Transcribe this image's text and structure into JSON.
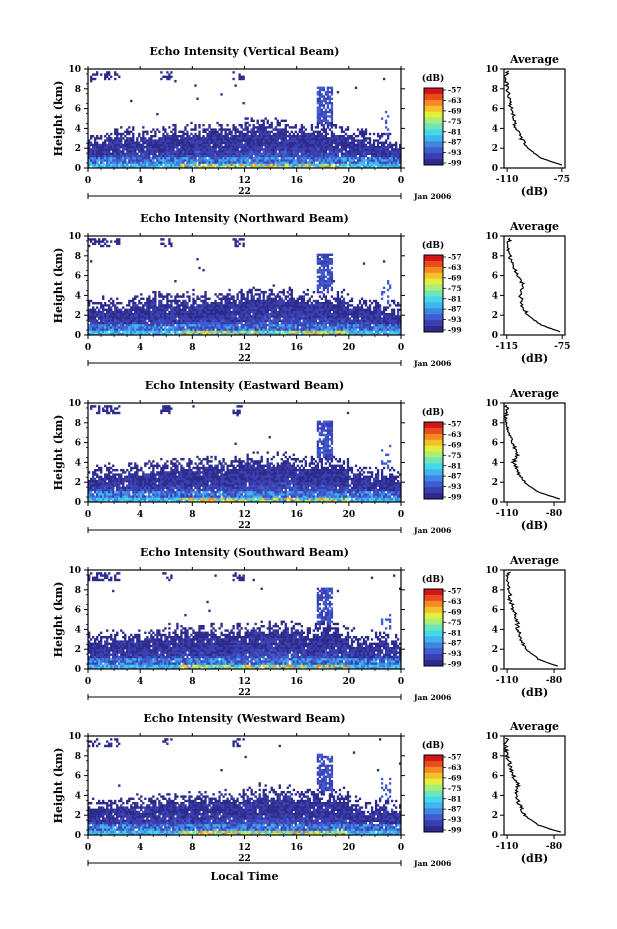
{
  "figure": {
    "colorbar_unit": "(dB)",
    "colorbar_ticks": [
      "-57",
      "-63",
      "-69",
      "-75",
      "-81",
      "-87",
      "-93",
      "-99"
    ],
    "colormap": [
      "#2c2a8c",
      "#3a3fb0",
      "#3f5cd0",
      "#3f86e3",
      "#3fb4ef",
      "#45d8e8",
      "#6ee6b8",
      "#a8ee78",
      "#e2ef3c",
      "#f5c02c",
      "#f58a22",
      "#ea4a1c",
      "#d0161a"
    ],
    "x_tick_labels": [
      "0",
      "4",
      "8",
      "12",
      "16",
      "20",
      "0"
    ],
    "date_day": "22",
    "date_month": "Jan 2006",
    "y_label": "Height (km)",
    "y_tick_labels": [
      "0",
      "2",
      "4",
      "6",
      "8",
      "10"
    ],
    "x_label": "Local Time",
    "avg_title": "Average",
    "avg_xlabel": "(dB)"
  },
  "chart_data": [
    {
      "type": "heatmap",
      "title": "Echo Intensity (Vertical Beam)",
      "ylabel": "Height (km)",
      "xlabel": "",
      "xlim": [
        0,
        24
      ],
      "ylim": [
        0,
        10
      ],
      "profile": {
        "title": "Average",
        "xlabel": "(dB)",
        "xticks": [
          "-110",
          "-75"
        ],
        "xlim": [
          -112,
          -73
        ],
        "height_km": [
          0.3,
          1,
          2,
          3,
          4,
          5,
          6,
          7,
          8,
          9,
          9.8
        ],
        "db": [
          -75,
          -88,
          -97,
          -101,
          -104,
          -106,
          -107,
          -109,
          -110,
          -111,
          -110
        ]
      }
    },
    {
      "type": "heatmap",
      "title": "Echo Intensity (Northward Beam)",
      "ylabel": "Height (km)",
      "xlabel": "",
      "xlim": [
        0,
        24
      ],
      "ylim": [
        0,
        10
      ],
      "profile": {
        "title": "Average",
        "xlabel": "(dB)",
        "xticks": [
          "-115",
          "-75"
        ],
        "xlim": [
          -117,
          -73
        ],
        "height_km": [
          0.3,
          1,
          2,
          3,
          4,
          5,
          6,
          7,
          8,
          9,
          9.8
        ],
        "db": [
          -76,
          -90,
          -100,
          -104,
          -105,
          -103,
          -107,
          -111,
          -113,
          -114,
          -113
        ]
      }
    },
    {
      "type": "heatmap",
      "title": "Echo Intensity (Eastward Beam)",
      "ylabel": "Height (km)",
      "xlabel": "",
      "xlim": [
        0,
        24
      ],
      "ylim": [
        0,
        10
      ],
      "profile": {
        "title": "Average",
        "xlabel": "(dB)",
        "xticks": [
          "-110",
          "-80"
        ],
        "xlim": [
          -112,
          -73
        ],
        "height_km": [
          0.3,
          1,
          2,
          3,
          4,
          5,
          6,
          7,
          8,
          9,
          9.8
        ],
        "db": [
          -76,
          -90,
          -99,
          -103,
          -106,
          -103,
          -107,
          -109,
          -110,
          -111,
          -110
        ]
      }
    },
    {
      "type": "heatmap",
      "title": "Echo Intensity (Southward Beam)",
      "ylabel": "Height (km)",
      "xlabel": "",
      "xlim": [
        0,
        24
      ],
      "ylim": [
        0,
        10
      ],
      "profile": {
        "title": "Average",
        "xlabel": "(dB)",
        "xticks": [
          "-110",
          "-80"
        ],
        "xlim": [
          -112,
          -73
        ],
        "height_km": [
          0.3,
          1,
          2,
          3,
          4,
          5,
          6,
          7,
          8,
          9,
          9.8
        ],
        "db": [
          -78,
          -90,
          -98,
          -102,
          -103,
          -104,
          -106,
          -108,
          -109,
          -110,
          -109
        ]
      }
    },
    {
      "type": "heatmap",
      "title": "Echo Intensity (Westward Beam)",
      "ylabel": "Height (km)",
      "xlabel": "Local Time",
      "xlim": [
        0,
        24
      ],
      "ylim": [
        0,
        10
      ],
      "profile": {
        "title": "Average",
        "xlabel": "(dB)",
        "xticks": [
          "-110",
          "-80"
        ],
        "xlim": [
          -112,
          -73
        ],
        "height_km": [
          0.3,
          1,
          2,
          3,
          4,
          5,
          6,
          7,
          8,
          9,
          9.8
        ],
        "db": [
          -76,
          -90,
          -99,
          -102,
          -104,
          -103,
          -106,
          -108,
          -110,
          -111,
          -110
        ]
      }
    }
  ]
}
